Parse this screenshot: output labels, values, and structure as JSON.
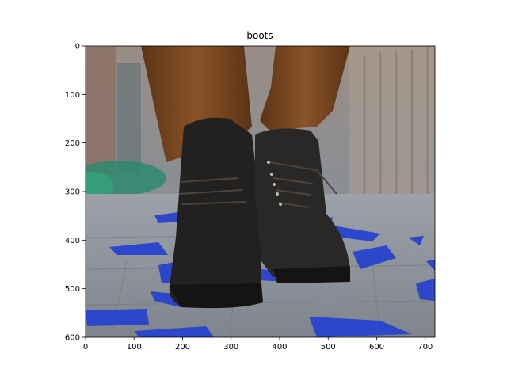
{
  "title": "boots",
  "x_axis": {
    "ticks": [
      0,
      100,
      200,
      300,
      400,
      500,
      600,
      700
    ],
    "range": [
      0,
      720
    ]
  },
  "y_axis": {
    "ticks": [
      0,
      100,
      200,
      300,
      400,
      500,
      600
    ],
    "range": [
      0,
      600
    ],
    "inverted": true
  },
  "image": {
    "subject": "two black lace-up leather boots walking on a grey paved street",
    "colors": {
      "boot": "#23211f",
      "pants": "#7a4a22",
      "pavement": "#8e949b",
      "confetti": "#2c47c9",
      "greenery": "#2f8a6e",
      "background_wall": "#8b7b72"
    }
  }
}
